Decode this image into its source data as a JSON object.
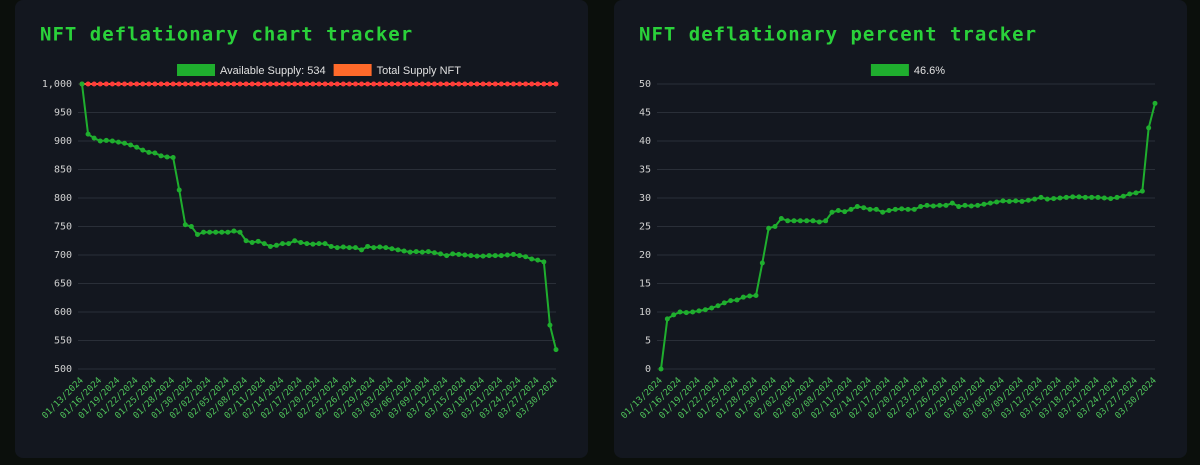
{
  "chart_data": [
    {
      "type": "line",
      "title": "NFT deflationary chart tracker",
      "categories": [
        "01/13/2024",
        null,
        null,
        "01/16/2024",
        null,
        null,
        "01/19/2024",
        null,
        null,
        "01/22/2024",
        null,
        null,
        "01/25/2024",
        null,
        null,
        "01/28/2024",
        null,
        null,
        "01/30/2024",
        null,
        null,
        "02/02/2024",
        null,
        null,
        "02/05/2024",
        null,
        null,
        "02/08/2024",
        null,
        null,
        "02/11/2024",
        null,
        null,
        "02/14/2024",
        null,
        null,
        "02/17/2024",
        null,
        null,
        "02/20/2024",
        null,
        null,
        "02/23/2024",
        null,
        null,
        "02/26/2024",
        null,
        null,
        "02/29/2024",
        null,
        null,
        "03/03/2024",
        null,
        null,
        "03/06/2024",
        null,
        null,
        "03/09/2024",
        null,
        null,
        "03/12/2024",
        null,
        null,
        "03/15/2024",
        null,
        null,
        "03/18/2024",
        null,
        null,
        "03/21/2024",
        null,
        null,
        "03/24/2024",
        null,
        null,
        "03/27/2024",
        null,
        null,
        "03/30/2024"
      ],
      "series": [
        {
          "name": "Available Supply: 534",
          "color": "#1fae2e",
          "values": [
            1000,
            912,
            905,
            900,
            901,
            900,
            898,
            896,
            893,
            889,
            884,
            880,
            879,
            874,
            872,
            871,
            814,
            753,
            750,
            736,
            740,
            740,
            740,
            740,
            740,
            742,
            740,
            725,
            722,
            724,
            720,
            715,
            717,
            720,
            720,
            725,
            722,
            720,
            719,
            720,
            720,
            715,
            713,
            714,
            713,
            713,
            709,
            715,
            713,
            714,
            713,
            711,
            709,
            707,
            705,
            706,
            705,
            706,
            704,
            702,
            699,
            702,
            701,
            700,
            699,
            698,
            698,
            699,
            699,
            699,
            700,
            701,
            699,
            697,
            693,
            691,
            688,
            577,
            534
          ]
        },
        {
          "name": "Total Supply NFT",
          "color": "#ff6a2a",
          "values": [
            1000,
            1000,
            1000,
            1000,
            1000,
            1000,
            1000,
            1000,
            1000,
            1000,
            1000,
            1000,
            1000,
            1000,
            1000,
            1000,
            1000,
            1000,
            1000,
            1000,
            1000,
            1000,
            1000,
            1000,
            1000,
            1000,
            1000,
            1000,
            1000,
            1000,
            1000,
            1000,
            1000,
            1000,
            1000,
            1000,
            1000,
            1000,
            1000,
            1000,
            1000,
            1000,
            1000,
            1000,
            1000,
            1000,
            1000,
            1000,
            1000,
            1000,
            1000,
            1000,
            1000,
            1000,
            1000,
            1000,
            1000,
            1000,
            1000,
            1000,
            1000,
            1000,
            1000,
            1000,
            1000,
            1000,
            1000,
            1000,
            1000,
            1000,
            1000,
            1000,
            1000,
            1000,
            1000,
            1000,
            1000,
            1000,
            1000
          ]
        }
      ],
      "ylim": [
        500,
        1000
      ],
      "yticks": [
        500,
        550,
        600,
        650,
        700,
        750,
        800,
        850,
        900,
        950,
        {
          "value": 1000,
          "label": "1,000"
        }
      ],
      "grid": true
    },
    {
      "type": "line",
      "title": "NFT deflationary percent tracker",
      "categories": [
        "01/13/2024",
        null,
        null,
        "01/16/2024",
        null,
        null,
        "01/19/2024",
        null,
        null,
        "01/22/2024",
        null,
        null,
        "01/25/2024",
        null,
        null,
        "01/28/2024",
        null,
        null,
        "01/30/2024",
        null,
        null,
        "02/02/2024",
        null,
        null,
        "02/05/2024",
        null,
        null,
        "02/08/2024",
        null,
        null,
        "02/11/2024",
        null,
        null,
        "02/14/2024",
        null,
        null,
        "02/17/2024",
        null,
        null,
        "02/20/2024",
        null,
        null,
        "02/23/2024",
        null,
        null,
        "02/26/2024",
        null,
        null,
        "02/29/2024",
        null,
        null,
        "03/03/2024",
        null,
        null,
        "03/06/2024",
        null,
        null,
        "03/09/2024",
        null,
        null,
        "03/12/2024",
        null,
        null,
        "03/15/2024",
        null,
        null,
        "03/18/2024",
        null,
        null,
        "03/21/2024",
        null,
        null,
        "03/24/2024",
        null,
        null,
        "03/27/2024",
        null,
        null,
        "03/30/2024"
      ],
      "series": [
        {
          "name": "46.6%",
          "color": "#1fae2e",
          "values": [
            0,
            8.8,
            9.5,
            10,
            9.9,
            10,
            10.2,
            10.4,
            10.7,
            11.1,
            11.6,
            12,
            12.1,
            12.6,
            12.8,
            12.9,
            18.6,
            24.7,
            25,
            26.4,
            26,
            26,
            26,
            26,
            26,
            25.8,
            26,
            27.5,
            27.8,
            27.6,
            28,
            28.5,
            28.3,
            28,
            28,
            27.5,
            27.8,
            28,
            28.1,
            28,
            28,
            28.5,
            28.7,
            28.6,
            28.7,
            28.7,
            29.1,
            28.5,
            28.7,
            28.6,
            28.7,
            28.9,
            29.1,
            29.3,
            29.5,
            29.4,
            29.5,
            29.4,
            29.6,
            29.8,
            30.1,
            29.8,
            29.9,
            30,
            30.1,
            30.2,
            30.2,
            30.1,
            30.1,
            30.1,
            30,
            29.9,
            30.1,
            30.3,
            30.7,
            30.9,
            31.2,
            42.3,
            46.6
          ]
        }
      ],
      "ylim": [
        0,
        50
      ],
      "yticks": [
        0,
        5,
        10,
        15,
        20,
        25,
        30,
        35,
        40,
        45,
        50
      ],
      "grid": true
    }
  ]
}
